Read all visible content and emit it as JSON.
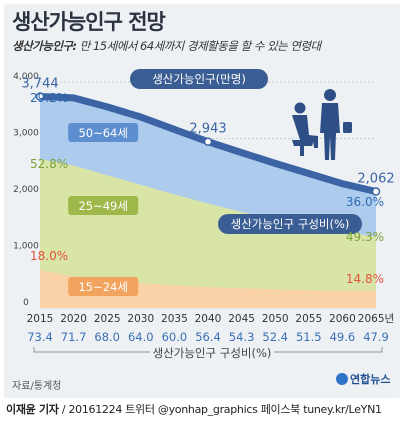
{
  "title": "생산가능인구 전망",
  "subtitle": {
    "label": "생산가능인구:",
    "text": " 만 15세에서 64세까지 경제활동을 할 수 있는 연령대"
  },
  "source": "자료/통계청",
  "logo": "연합뉴스",
  "footer": {
    "author": "이재윤 기자",
    "rest": " / 20161224  트위터 @yonhap_graphics  페이스북 tuney.kr/LeYN1"
  },
  "colors": {
    "band_50_64": "#a9c9ec",
    "band_25_49": "#dbe6a3",
    "band_15_24": "#fbd1a7",
    "line": "#3c64a4",
    "ratio_text": "#3b6fb6",
    "pct_red": "#e5533a",
    "pct_green": "#7aa33a",
    "pct_blue": "#2e6bb5"
  },
  "chart_data": {
    "type": "area",
    "x": [
      2015,
      2020,
      2025,
      2030,
      2035,
      2040,
      2045,
      2050,
      2055,
      2060,
      2065
    ],
    "x_tick_labels": [
      "2015",
      "2020",
      "2025",
      "2030",
      "2035",
      "2040",
      "2045",
      "2050",
      "2055",
      "2060",
      "2065년"
    ],
    "ylim": [
      0,
      4000
    ],
    "y_ticks": [
      0,
      1000,
      2000,
      3000,
      4000
    ],
    "y_tick_labels": [
      "0",
      "1,000",
      "2,000",
      "3,000",
      "4,000"
    ],
    "series": [
      {
        "name": "생산가능인구(만명)",
        "values": [
          3744,
          3720,
          3560,
          3380,
          3160,
          2943,
          2750,
          2560,
          2380,
          2200,
          2062
        ]
      },
      {
        "name": "50~64세",
        "values": [
          3744,
          3720,
          3560,
          3380,
          3160,
          2943,
          2750,
          2560,
          2380,
          2200,
          2062
        ]
      },
      {
        "name": "25~49세",
        "values": [
          2640,
          2520,
          2350,
          2180,
          2010,
          1850,
          1700,
          1580,
          1460,
          1350,
          1261
        ]
      },
      {
        "name": "15~24세",
        "values": [
          670,
          560,
          490,
          440,
          400,
          370,
          350,
          330,
          315,
          305,
          305
        ]
      }
    ],
    "labeled_points": [
      {
        "x": 2015,
        "value": "3,744"
      },
      {
        "x": 2040,
        "value": "2,943"
      },
      {
        "x": 2065,
        "value": "2,062"
      }
    ],
    "band_percentages": {
      "2015": {
        "50~64세": "29.2%",
        "25~49세": "52.8%",
        "15~24세": "18.0%"
      },
      "2065": {
        "50~64세": "36.0%",
        "25~49세": "49.3%",
        "15~24세": "14.8%"
      }
    },
    "ratio_title": "생산가능인구 구성비(%)",
    "ratio_values": [
      "73.4",
      "71.7",
      "68.0",
      "64.0",
      "60.0",
      "56.4",
      "54.3",
      "52.4",
      "51.5",
      "49.6",
      "47.9"
    ],
    "callouts": {
      "total_label": "생산가능인구(만명)",
      "ratio_label": "생산가능인구 구성비(%)"
    }
  }
}
